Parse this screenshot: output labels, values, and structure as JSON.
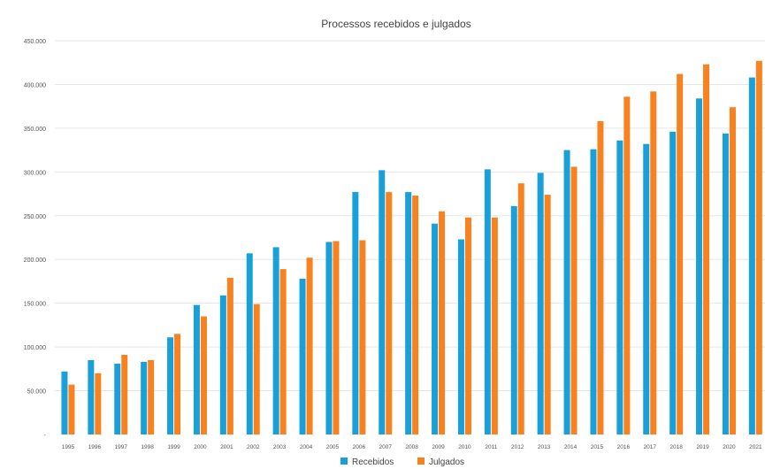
{
  "chart_data": {
    "type": "bar",
    "title": "Processos recebidos e julgados",
    "categories": [
      "1995",
      "1996",
      "1997",
      "1998",
      "1999",
      "2000",
      "2001",
      "2002",
      "2003",
      "2004",
      "2005",
      "2006",
      "2007",
      "2008",
      "2009",
      "2010",
      "2011",
      "2012",
      "2013",
      "2014",
      "2015",
      "2016",
      "2017",
      "2018",
      "2019",
      "2020",
      "2021"
    ],
    "series": [
      {
        "name": "Recebidos",
        "color": "#1aa0d8",
        "values": [
          72000,
          85000,
          81000,
          83000,
          111000,
          148000,
          159000,
          207000,
          214000,
          178000,
          220000,
          277000,
          302000,
          277000,
          241000,
          223000,
          303000,
          261000,
          299000,
          325000,
          326000,
          336000,
          332000,
          346000,
          384000,
          344000,
          408000
        ]
      },
      {
        "name": "Julgados",
        "color": "#f7821f",
        "values": [
          57000,
          70000,
          91000,
          85000,
          115000,
          135000,
          179000,
          149000,
          189000,
          202000,
          221000,
          222000,
          277000,
          273000,
          255000,
          248000,
          248000,
          287000,
          274000,
          306000,
          358000,
          386000,
          392000,
          412000,
          423000,
          374000,
          427000
        ]
      }
    ],
    "y_tick_labels": [
      "-",
      "50.000",
      "100.000",
      "150.000",
      "200.000",
      "250.000",
      "300.000",
      "350.000",
      "400.000",
      "450.000"
    ],
    "ylim": [
      0,
      450000
    ],
    "grid": true,
    "legend_position": "bottom"
  }
}
